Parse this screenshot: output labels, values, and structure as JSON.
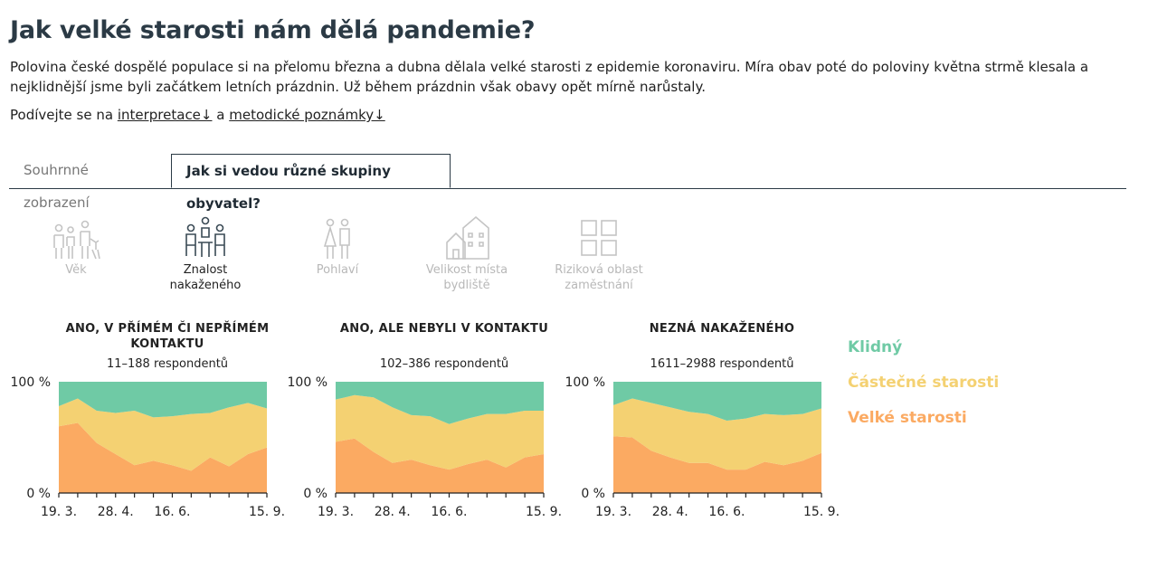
{
  "page": {
    "title": "Jak velké starosti nám dělá pandemie?",
    "lead": "Polovina české dospělé populace si na přelomu března a dubna dělala velké starosti z epidemie koronaviru. Míra obav poté do poloviny května strmě klesala a nejklidnější jsme byli začátkem letních prázdnin. Už během prázdnin však obavy opět mírně narůstaly.",
    "see_prefix": "Podívejte se na",
    "see_link1": "interpretace↓",
    "see_and": "a",
    "see_link2": "metodické poznámky↓"
  },
  "tabs": {
    "summary": "Souhrnné zobrazení",
    "groups": "Jak si vedou různé skupiny obyvatel?"
  },
  "groups": [
    {
      "label": "Věk",
      "icon": "people-age-icon",
      "selected": false
    },
    {
      "label": "Znalost nakaženého",
      "icon": "people-meeting-icon",
      "selected": true
    },
    {
      "label": "Pohlaví",
      "icon": "man-woman-icon",
      "selected": false
    },
    {
      "label": "Velikost místa bydliště",
      "icon": "houses-icon",
      "selected": false
    },
    {
      "label": "Riziková oblast zaměstnání",
      "icon": "grid-icon",
      "selected": false
    }
  ],
  "colors": {
    "calm": "#6fcaa5",
    "partial": "#f4d172",
    "big": "#fbaa62",
    "axis": "#222222"
  },
  "legend": [
    "Klidný",
    "Částečné starosti",
    "Velké starosti"
  ],
  "chart_data": [
    {
      "type": "area",
      "title": "ANO, V PŘÍMÉM ČI NEPŘÍMÉM KONTAKTU",
      "respondents": "11–188 respondentů",
      "x_ticks": [
        "19. 3.",
        "28. 4.",
        "16. 6.",
        "15. 9."
      ],
      "y_ticks": [
        "100 %",
        "0 %"
      ],
      "ylim": [
        0,
        100
      ],
      "x": [
        "19. 3.",
        "1. 4.",
        "14. 4.",
        "28. 4.",
        "12. 5.",
        "26. 5.",
        "16. 6.",
        "30. 6.",
        "14. 7.",
        "4. 8.",
        "25. 8.",
        "15. 9."
      ],
      "series": [
        {
          "name": "Velké starosti",
          "values": [
            60,
            63,
            45,
            35,
            25,
            29,
            25,
            20,
            32,
            24,
            35,
            41
          ]
        },
        {
          "name": "Částečné starosti",
          "values": [
            18,
            22,
            29,
            37,
            49,
            39,
            44,
            51,
            40,
            53,
            46,
            35
          ]
        },
        {
          "name": "Klidný",
          "values": [
            22,
            15,
            26,
            28,
            26,
            32,
            31,
            29,
            28,
            23,
            19,
            24
          ]
        }
      ]
    },
    {
      "type": "area",
      "title": "ANO, ALE NEBYLI V KONTAKTU",
      "respondents": "102–386 respondentů",
      "x_ticks": [
        "19. 3.",
        "28. 4.",
        "16. 6.",
        "15. 9."
      ],
      "y_ticks": [
        "100 %",
        "0 %"
      ],
      "ylim": [
        0,
        100
      ],
      "x": [
        "19. 3.",
        "1. 4.",
        "14. 4.",
        "28. 4.",
        "12. 5.",
        "26. 5.",
        "16. 6.",
        "30. 6.",
        "14. 7.",
        "4. 8.",
        "25. 8.",
        "15. 9."
      ],
      "series": [
        {
          "name": "Velké starosti",
          "values": [
            46,
            49,
            37,
            27,
            30,
            25,
            21,
            26,
            30,
            23,
            32,
            35
          ]
        },
        {
          "name": "Částečné starosti",
          "values": [
            38,
            39,
            49,
            50,
            40,
            44,
            41,
            41,
            41,
            48,
            42,
            39
          ]
        },
        {
          "name": "Klidný",
          "values": [
            16,
            12,
            14,
            23,
            30,
            31,
            38,
            33,
            29,
            29,
            26,
            26
          ]
        }
      ]
    },
    {
      "type": "area",
      "title": "NEZNÁ NAKAŽENÉHO",
      "respondents": "1611–2988 respondentů",
      "x_ticks": [
        "19. 3.",
        "28. 4.",
        "16. 6.",
        "15. 9."
      ],
      "y_ticks": [
        "100 %",
        "0 %"
      ],
      "ylim": [
        0,
        100
      ],
      "x": [
        "19. 3.",
        "1. 4.",
        "14. 4.",
        "28. 4.",
        "12. 5.",
        "26. 5.",
        "16. 6.",
        "30. 6.",
        "14. 7.",
        "4. 8.",
        "25. 8.",
        "15. 9."
      ],
      "series": [
        {
          "name": "Velké starosti",
          "values": [
            51,
            50,
            38,
            32,
            27,
            27,
            21,
            21,
            28,
            25,
            29,
            36
          ]
        },
        {
          "name": "Částečné starosti",
          "values": [
            28,
            35,
            43,
            45,
            46,
            44,
            44,
            46,
            43,
            45,
            42,
            40
          ]
        },
        {
          "name": "Klidný",
          "values": [
            21,
            15,
            19,
            23,
            27,
            29,
            35,
            33,
            29,
            30,
            29,
            24
          ]
        }
      ]
    }
  ]
}
